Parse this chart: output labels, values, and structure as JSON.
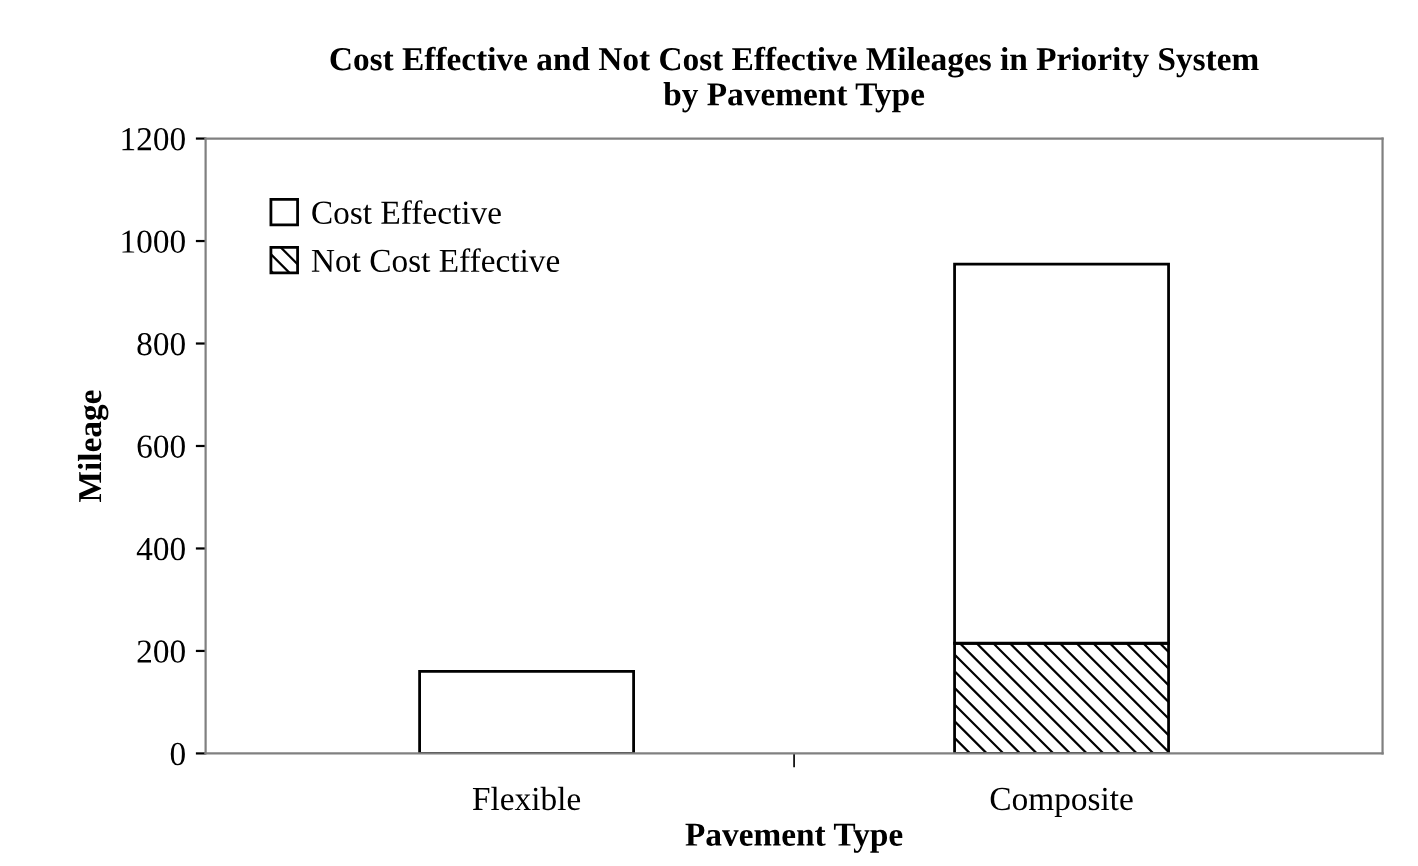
{
  "chart_data": {
    "type": "bar",
    "title": "Cost Effective and Not Cost Effective Mileages in Priority System\nby Pavement Type",
    "xlabel": "Pavement Type",
    "ylabel": "Mileage",
    "categories": [
      "Flexible",
      "Composite"
    ],
    "stacked": true,
    "series": [
      {
        "name": "Not Cost Effective",
        "color": "#000000",
        "values": [
          0,
          215
        ]
      },
      {
        "name": "Cost Effective",
        "color": "#ffffff",
        "values": [
          160,
          740
        ]
      }
    ],
    "ylim": [
      0,
      1200
    ],
    "yticks": [
      0,
      200,
      400,
      600,
      800,
      1000,
      1200
    ],
    "grid": false,
    "legend": "top left"
  }
}
